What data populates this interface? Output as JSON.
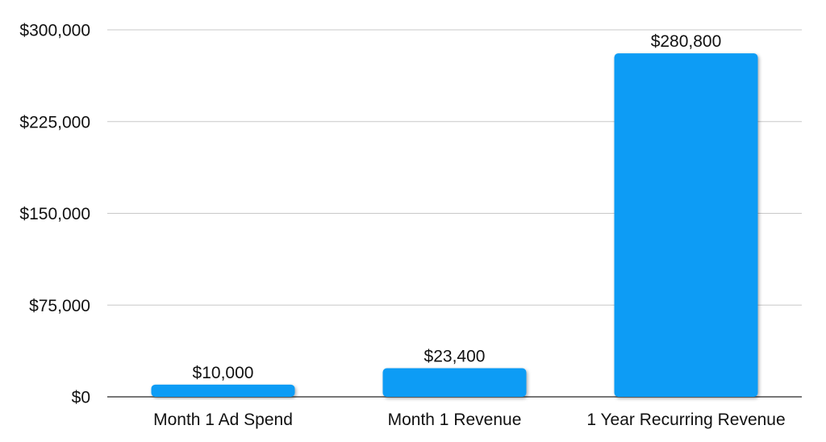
{
  "chart_data": {
    "type": "bar",
    "title": "",
    "xlabel": "",
    "ylabel": "",
    "categories": [
      "Month 1 Ad Spend",
      "Month 1 Revenue",
      "1 Year Recurring Revenue"
    ],
    "values": [
      10000,
      23400,
      280800
    ],
    "data_labels": [
      "$10,000",
      "$23,400",
      "$280,800"
    ],
    "ylim": [
      0,
      300000
    ],
    "yticks": [
      0,
      75000,
      150000,
      225000,
      300000
    ],
    "ytick_labels": [
      "$0",
      "$75,000",
      "$150,000",
      "$225,000",
      "$300,000"
    ],
    "grid": true,
    "legend": "none",
    "bar_color": "#0a9cf5"
  }
}
